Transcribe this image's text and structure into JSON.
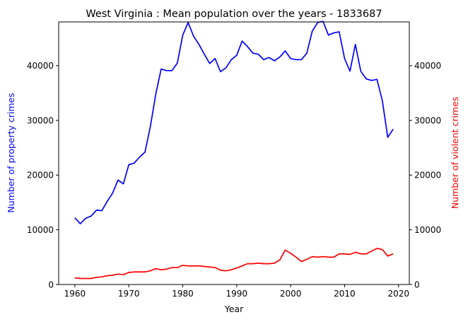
{
  "chart_data": {
    "type": "line",
    "title": "West Virginia : Mean population over the years - 1833687",
    "xlabel": "Year",
    "ylabel_left": "Number of property crimes",
    "ylabel_right": "Number of violent crimes",
    "xlim": [
      1957,
      2022
    ],
    "ylim": [
      0,
      48000
    ],
    "x_ticks": [
      1960,
      1970,
      1980,
      1990,
      2000,
      2010,
      2020
    ],
    "y_ticks": [
      0,
      10000,
      20000,
      30000,
      40000
    ],
    "grid": false,
    "colors": {
      "property": "#0000ff",
      "violent": "#ff0000",
      "axes": "#000000"
    },
    "x": [
      1960,
      1961,
      1962,
      1963,
      1964,
      1965,
      1966,
      1967,
      1968,
      1969,
      1970,
      1971,
      1972,
      1973,
      1974,
      1975,
      1976,
      1977,
      1978,
      1979,
      1980,
      1981,
      1982,
      1983,
      1984,
      1985,
      1986,
      1987,
      1988,
      1989,
      1990,
      1991,
      1992,
      1993,
      1994,
      1995,
      1996,
      1997,
      1998,
      1999,
      2000,
      2001,
      2002,
      2003,
      2004,
      2005,
      2006,
      2007,
      2008,
      2009,
      2010,
      2011,
      2012,
      2013,
      2014,
      2015,
      2016,
      2017,
      2018,
      2019
    ],
    "series": [
      {
        "axis": "left",
        "values": [
          12200,
          11100,
          12100,
          12500,
          13600,
          13500,
          15200,
          16700,
          19100,
          18400,
          21900,
          22200,
          23300,
          24200,
          28900,
          34800,
          39400,
          39100,
          39100,
          40500,
          45600,
          47900,
          45400,
          43900,
          42100,
          40400,
          41300,
          38900,
          39600,
          41100,
          41900,
          44500,
          43500,
          42300,
          42100,
          41100,
          41500,
          40900,
          41600,
          42700,
          41300,
          41100,
          41100,
          42300,
          46300,
          47900,
          48100,
          45600,
          46000,
          46200,
          41300,
          39000,
          43900,
          39000,
          37600,
          37300,
          37500,
          33600,
          26900,
          28400
        ]
      },
      {
        "axis": "right",
        "values": [
          1200,
          1100,
          1100,
          1100,
          1300,
          1400,
          1600,
          1700,
          1900,
          1800,
          2200,
          2300,
          2300,
          2300,
          2500,
          2900,
          2700,
          2800,
          3100,
          3100,
          3500,
          3400,
          3400,
          3400,
          3300,
          3200,
          3100,
          2600,
          2500,
          2700,
          3000,
          3400,
          3800,
          3800,
          3900,
          3800,
          3800,
          3900,
          4500,
          6300,
          5700,
          5000,
          4200,
          4600,
          5100,
          5000,
          5100,
          5000,
          5000,
          5600,
          5600,
          5500,
          5900,
          5600,
          5600,
          6100,
          6600,
          6400,
          5200,
          5600
        ]
      }
    ]
  }
}
